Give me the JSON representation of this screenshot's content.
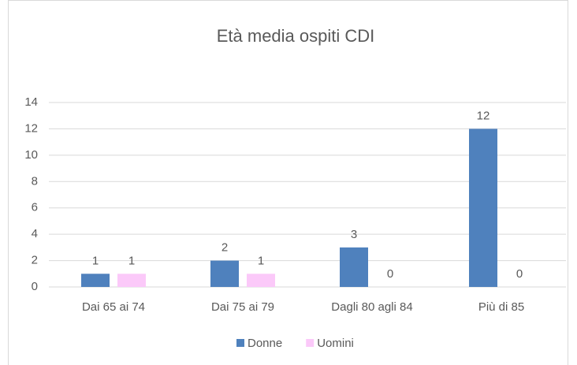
{
  "chart_data": {
    "type": "bar",
    "title": "Età media ospiti CDI",
    "categories": [
      "Dai 65 ai 74",
      "Dai 75 ai 79",
      "Dagli 80 agli 84",
      "Più di 85"
    ],
    "series": [
      {
        "name": "Donne",
        "color": "#4f81bd",
        "values": [
          1,
          2,
          3,
          12
        ]
      },
      {
        "name": "Uomini",
        "color": "#fbc9f9",
        "values": [
          1,
          1,
          0,
          0
        ]
      }
    ],
    "ylim": [
      0,
      14
    ],
    "yticks": [
      0,
      2,
      4,
      6,
      8,
      10,
      12,
      14
    ],
    "grid": true,
    "legend": "bottom"
  }
}
